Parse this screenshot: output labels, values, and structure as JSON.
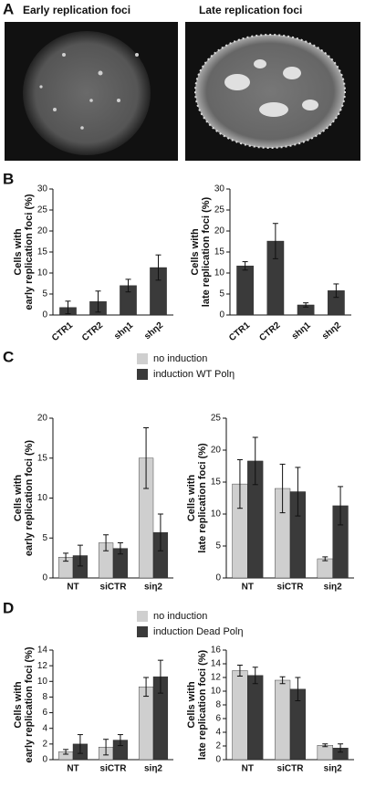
{
  "panel_labels": [
    "A",
    "B",
    "C",
    "D"
  ],
  "images": [
    {
      "title": "Early replication foci"
    },
    {
      "title": "Late replication foci"
    }
  ],
  "chart_data": [
    {
      "type": "bar",
      "ylabel": [
        "Cells with",
        "early replication foci (%)"
      ],
      "categories": [
        "CTR1",
        "CTR2",
        "shη1",
        "shη2"
      ],
      "series": [
        {
          "color": "#3a3a3a",
          "values": [
            1.8,
            3.2,
            7.0,
            11.3
          ],
          "errors": [
            1.5,
            2.5,
            1.5,
            3.0
          ]
        }
      ],
      "ylim": [
        0,
        30
      ],
      "yticks": [
        0,
        5,
        10,
        15,
        20,
        25,
        30
      ]
    },
    {
      "type": "bar",
      "ylabel": [
        "Cells with",
        "late replication foci (%)"
      ],
      "categories": [
        "CTR1",
        "CTR2",
        "shη1",
        "shη2"
      ],
      "series": [
        {
          "color": "#3a3a3a",
          "values": [
            11.7,
            17.6,
            2.4,
            5.8
          ],
          "errors": [
            1.0,
            4.2,
            0.5,
            1.6
          ]
        }
      ],
      "ylim": [
        0,
        30
      ],
      "yticks": [
        0,
        5,
        10,
        15,
        20,
        25,
        30
      ]
    },
    {
      "type": "bar",
      "ylabel": [
        "Cells with",
        "early replication foci (%)"
      ],
      "categories": [
        "NT",
        "siCTR",
        "siη2"
      ],
      "series": [
        {
          "name": "no induction",
          "color": "#cfcfcf",
          "values": [
            2.6,
            4.4,
            15.0
          ],
          "errors": [
            0.5,
            1.0,
            3.8
          ]
        },
        {
          "name": "induction WT Polη",
          "color": "#3a3a3a",
          "values": [
            2.8,
            3.7,
            5.7
          ],
          "errors": [
            1.3,
            0.7,
            2.3
          ]
        }
      ],
      "ylim": [
        0,
        20
      ],
      "yticks": [
        0,
        5,
        10,
        15,
        20
      ]
    },
    {
      "type": "bar",
      "ylabel": [
        "Cells with",
        "late replication foci (%)"
      ],
      "categories": [
        "NT",
        "siCTR",
        "siη2"
      ],
      "series": [
        {
          "color": "#cfcfcf",
          "values": [
            14.7,
            14.0,
            3.0
          ],
          "errors": [
            3.8,
            3.8,
            0.3
          ]
        },
        {
          "color": "#3a3a3a",
          "values": [
            18.3,
            13.5,
            11.3
          ],
          "errors": [
            3.7,
            3.8,
            3.0
          ]
        }
      ],
      "ylim": [
        0,
        25
      ],
      "yticks": [
        0,
        5,
        10,
        15,
        20,
        25
      ]
    },
    {
      "type": "bar",
      "ylabel": [
        "Cells with",
        "early replication foci (%)"
      ],
      "categories": [
        "NT",
        "siCTR",
        "siη2"
      ],
      "series": [
        {
          "name": "no induction",
          "color": "#cfcfcf",
          "values": [
            1.0,
            1.6,
            9.3
          ],
          "errors": [
            0.3,
            1.0,
            1.2
          ]
        },
        {
          "name": "induction Dead Polη",
          "color": "#3a3a3a",
          "values": [
            2.0,
            2.5,
            10.6
          ],
          "errors": [
            1.2,
            0.7,
            2.1
          ]
        }
      ],
      "ylim": [
        0,
        14
      ],
      "yticks": [
        0,
        2,
        4,
        6,
        8,
        10,
        12,
        14
      ]
    },
    {
      "type": "bar",
      "ylabel": [
        "Cells with",
        "late replication foci (%)"
      ],
      "categories": [
        "NT",
        "siCTR",
        "siη2"
      ],
      "series": [
        {
          "color": "#cfcfcf",
          "values": [
            13.0,
            11.6,
            2.1
          ],
          "errors": [
            0.8,
            0.5,
            0.2
          ]
        },
        {
          "color": "#3a3a3a",
          "values": [
            12.3,
            10.3,
            1.7
          ],
          "errors": [
            1.2,
            1.7,
            0.6
          ]
        }
      ],
      "ylim": [
        0,
        16
      ],
      "yticks": [
        0,
        2,
        4,
        6,
        8,
        10,
        12,
        14,
        16
      ]
    }
  ]
}
